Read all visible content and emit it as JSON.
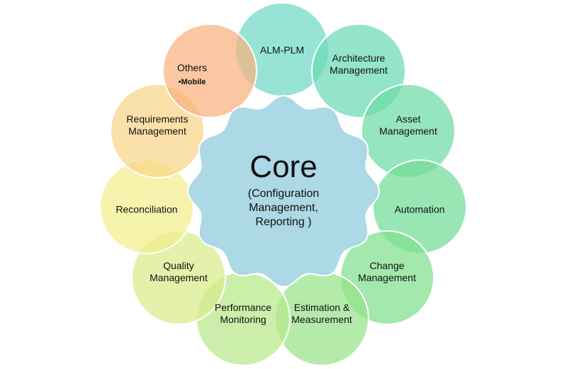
{
  "core": {
    "title": "Core",
    "lines": [
      "(Configuration",
      "Management,",
      "Reporting )"
    ],
    "color": "#a9d6e4"
  },
  "modules": [
    {
      "lines": [
        "ALM-PLM"
      ],
      "color": "#6fd9c8"
    },
    {
      "lines": [
        "Architecture",
        "Management"
      ],
      "color": "#6ad9b6"
    },
    {
      "lines": [
        "Asset",
        "Management"
      ],
      "color": "#6cdba6"
    },
    {
      "lines": [
        "Automation"
      ],
      "color": "#72dd97"
    },
    {
      "lines": [
        "Change",
        "Management"
      ],
      "color": "#80df8c"
    },
    {
      "lines": [
        "Estimation &",
        "Measurement"
      ],
      "color": "#97e38a"
    },
    {
      "lines": [
        "Performance",
        "Monitoring"
      ],
      "color": "#b9e88a"
    },
    {
      "lines": [
        "Quality",
        "Management"
      ],
      "color": "#d8ec8a"
    },
    {
      "lines": [
        "Reconciliation"
      ],
      "color": "#f3ee8c"
    },
    {
      "lines": [
        "Requirements",
        "Management"
      ],
      "color": "#f8d488"
    },
    {
      "lines": [
        "Others"
      ],
      "sub": "•Mobile",
      "color": "#f8b17e"
    }
  ]
}
